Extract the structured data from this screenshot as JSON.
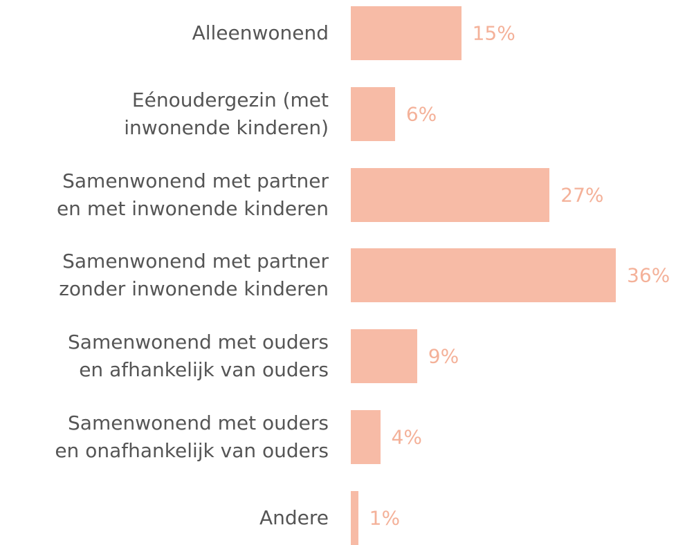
{
  "chart_data": {
    "type": "bar",
    "orientation": "horizontal",
    "categories": [
      "Alleenwonend",
      "Eénoudergezin (met\ninwonende kinderen)",
      "Samenwonend met partner\nen met inwonende kinderen",
      "Samenwonend met partner\nzonder inwonende kinderen",
      "Samenwonend met ouders\nen afhankelijk van ouders",
      "Samenwonend met ouders\nen onafhankelijk van ouders",
      "Andere"
    ],
    "values": [
      15,
      6,
      27,
      36,
      9,
      4,
      1
    ],
    "value_labels": [
      "15%",
      "6%",
      "27%",
      "36%",
      "9%",
      "4%",
      "1%"
    ],
    "color": "#f7bba6",
    "label_color": "#f4b199"
  }
}
